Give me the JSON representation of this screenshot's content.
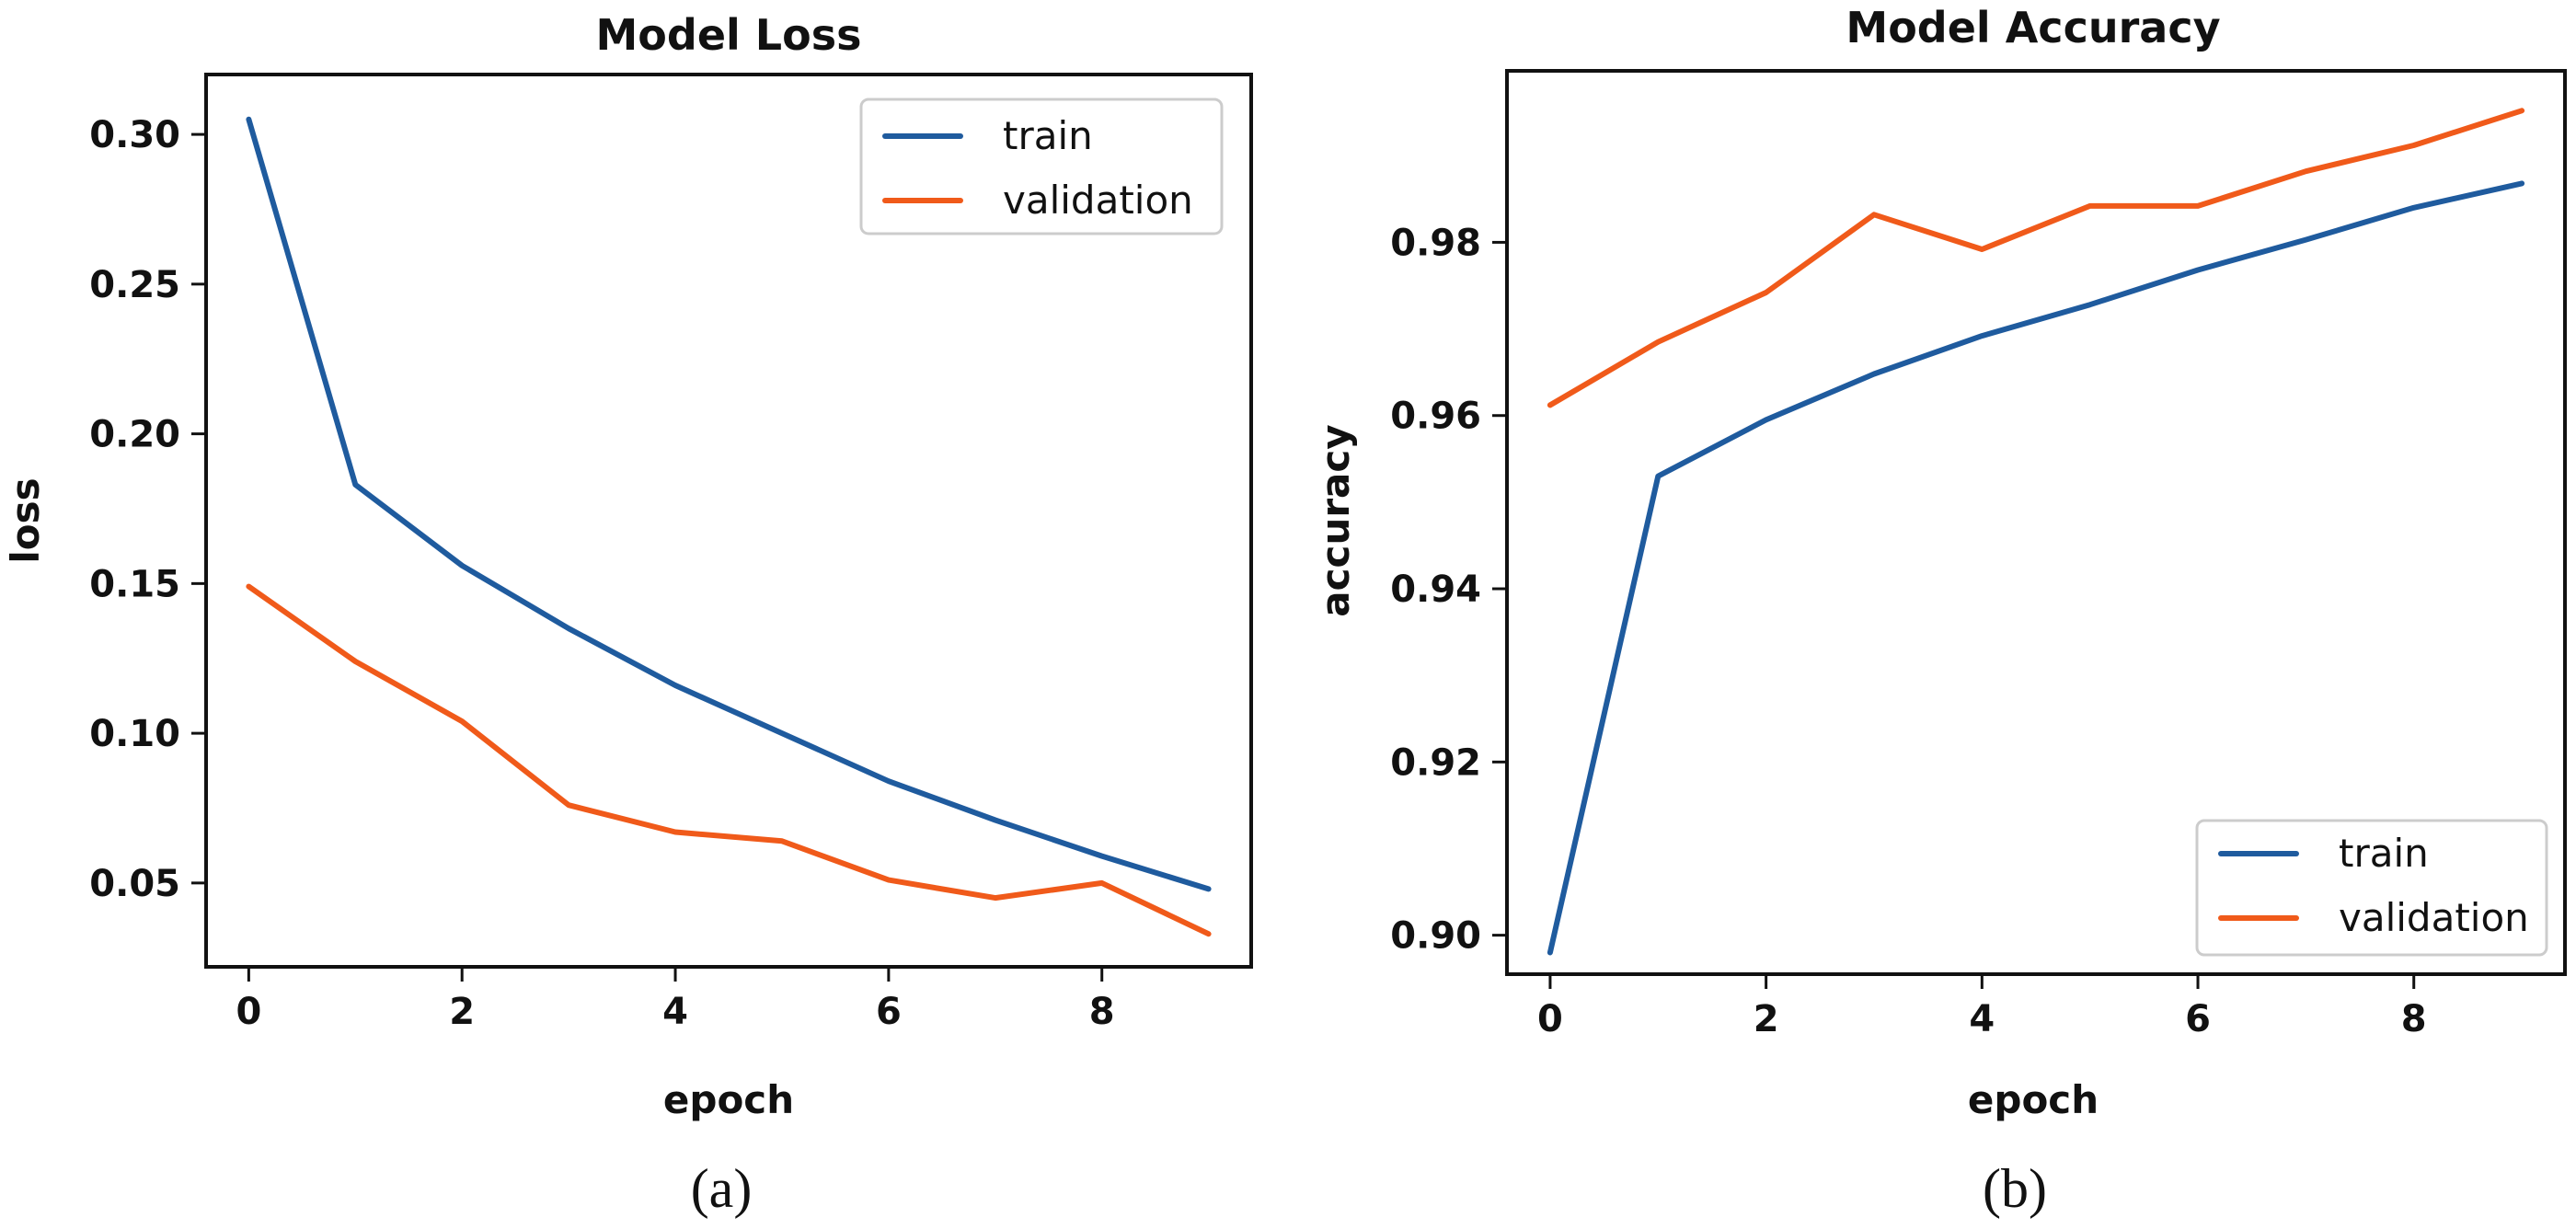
{
  "captions": [
    "(a)",
    "(b)"
  ],
  "colors": {
    "train": "#1f5b9e",
    "validation": "#f05a1a"
  },
  "chart_data": [
    {
      "type": "line",
      "title": "Model Loss",
      "xlabel": "epoch",
      "ylabel": "loss",
      "x": [
        0,
        1,
        2,
        3,
        4,
        5,
        6,
        7,
        8,
        9
      ],
      "xlim": [
        -0.4,
        9.4
      ],
      "ylim": [
        0.022,
        0.32
      ],
      "xticks": [
        "0",
        "2",
        "4",
        "6",
        "8"
      ],
      "yticks": [
        "0.05",
        "0.10",
        "0.15",
        "0.20",
        "0.25",
        "0.30"
      ],
      "legend": "top-right",
      "grid": false,
      "series": [
        {
          "name": "train",
          "values": [
            0.305,
            0.183,
            0.156,
            0.135,
            0.116,
            0.1,
            0.084,
            0.071,
            0.059,
            0.048
          ]
        },
        {
          "name": "validation",
          "values": [
            0.149,
            0.124,
            0.104,
            0.076,
            0.067,
            0.064,
            0.051,
            0.045,
            0.05,
            0.033
          ]
        }
      ]
    },
    {
      "type": "line",
      "title": "Model Accuracy",
      "xlabel": "epoch",
      "ylabel": "accuracy",
      "x": [
        0,
        1,
        2,
        3,
        4,
        5,
        6,
        7,
        8,
        9
      ],
      "xlim": [
        -0.4,
        9.4
      ],
      "ylim": [
        0.8955,
        0.9998
      ],
      "xticks": [
        "0",
        "2",
        "4",
        "6",
        "8"
      ],
      "yticks": [
        "0.90",
        "0.92",
        "0.94",
        "0.96",
        "0.98"
      ],
      "legend": "bottom-right",
      "grid": false,
      "series": [
        {
          "name": "train",
          "values": [
            0.898,
            0.953,
            0.9595,
            0.9648,
            0.9692,
            0.9728,
            0.9768,
            0.9803,
            0.984,
            0.9868
          ]
        },
        {
          "name": "validation",
          "values": [
            0.9612,
            0.9685,
            0.9742,
            0.9832,
            0.9792,
            0.9842,
            0.9842,
            0.9882,
            0.9912,
            0.9952
          ]
        }
      ]
    }
  ]
}
